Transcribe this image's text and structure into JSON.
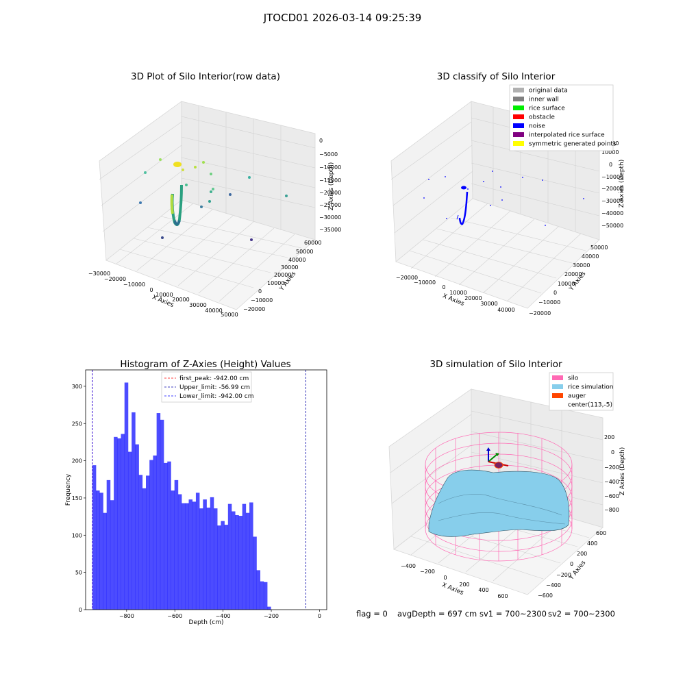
{
  "figure": {
    "suptitle": "JTOCD01 2026-03-14 09:25:39",
    "footer": {
      "flag": "flag = 0",
      "avg_depth": "avgDepth = 697 cm",
      "sv1": "sv1 = 700~2300",
      "sv2": "sv2 = 700~2300"
    }
  },
  "panels": {
    "raw": {
      "title": "3D Plot of Silo Interior(row data)",
      "xlabel": "X Axies",
      "ylabel": "Y Axies",
      "zlabel": "Z Axies (Depth)",
      "xticks": [
        "−30000",
        "−20000",
        "−10000",
        "0",
        "10000",
        "20000",
        "30000",
        "40000",
        "50000"
      ],
      "yticks": [
        "−20000",
        "−10000",
        "0",
        "10000",
        "20000",
        "30000",
        "40000",
        "50000",
        "60000"
      ],
      "zticks": [
        "0",
        "−5000",
        "−10000",
        "−15000",
        "−20000",
        "−25000",
        "−30000",
        "−35000"
      ]
    },
    "classify": {
      "title": "3D classify of Silo Interior",
      "xlabel": "X Axies",
      "ylabel": "Y Axies",
      "zlabel": "Z Axies (Depth)",
      "xticks": [
        "−20000",
        "−10000",
        "0",
        "10000",
        "20000",
        "30000",
        "40000"
      ],
      "yticks": [
        "−20000",
        "−10000",
        "0",
        "10000",
        "20000",
        "30000",
        "40000",
        "50000"
      ],
      "zticks": [
        "10000",
        "0",
        "−10000",
        "−20000",
        "−30000",
        "−40000",
        "−50000"
      ],
      "legend": [
        {
          "label": "original data",
          "color": "#b0b0b0"
        },
        {
          "label": "inner wall",
          "color": "#808080"
        },
        {
          "label": "rice surface",
          "color": "#00ee00"
        },
        {
          "label": "obstacle",
          "color": "#ff0000"
        },
        {
          "label": "noise",
          "color": "#0000ff"
        },
        {
          "label": "interpolated rice surface",
          "color": "#800080"
        },
        {
          "label": "symmetric generated points",
          "color": "#ffff00"
        }
      ]
    },
    "sim": {
      "title": "3D simulation of Silo Interior",
      "xlabel": "X Axies",
      "ylabel": "Y Axies",
      "zlabel": "Z Axies (Depth)",
      "xticks": [
        "−400",
        "−200",
        "0",
        "200",
        "400",
        "600"
      ],
      "yticks": [
        "−600",
        "−400",
        "−200",
        "0",
        "200",
        "400",
        "600"
      ],
      "zticks": [
        "200",
        "0",
        "−200",
        "−400",
        "−600",
        "−800"
      ],
      "legend": [
        {
          "label": "silo",
          "color": "#ff69b4"
        },
        {
          "label": "rice simulation",
          "color": "#87ceeb"
        },
        {
          "label": "auger",
          "color": "#ff4500"
        },
        {
          "label": "center(113,-5)",
          "color": ""
        }
      ]
    }
  },
  "chart_data": [
    {
      "type": "histogram",
      "title": "Histogram of Z-Axies (Height) Values",
      "xlabel": "Depth (cm)",
      "ylabel": "Frequency",
      "xlim": [
        -970,
        30
      ],
      "ylim": [
        0,
        322
      ],
      "xticks": [
        -800,
        -600,
        -400,
        -200,
        0
      ],
      "xtick_labels": [
        "−800",
        "−600",
        "−400",
        "−200",
        "0"
      ],
      "yticks": [
        0,
        50,
        100,
        150,
        200,
        250,
        300
      ],
      "bin_start": -942,
      "bin_width": 14.8,
      "bar_color": "#0000ff",
      "bar_alpha": 0.7,
      "values": [
        194,
        160,
        157,
        130,
        174,
        147,
        232,
        230,
        236,
        305,
        212,
        265,
        222,
        181,
        163,
        180,
        201,
        207,
        264,
        255,
        197,
        199,
        160,
        174,
        155,
        143,
        143,
        148,
        145,
        157,
        136,
        148,
        137,
        151,
        136,
        113,
        119,
        114,
        142,
        132,
        127,
        126,
        142,
        130,
        144,
        98,
        53,
        38,
        37,
        4
      ],
      "lines": [
        {
          "label": "first_peak: -942.00 cm",
          "x": -942,
          "color": "#ff0000"
        },
        {
          "label": "Upper_limit: -56.99 cm",
          "x": -56.99,
          "color": "#0000aa"
        },
        {
          "label": "Lower_limit: -942.00 cm",
          "x": -942,
          "color": "#0000ff"
        }
      ],
      "legend_position": "upper center"
    }
  ]
}
